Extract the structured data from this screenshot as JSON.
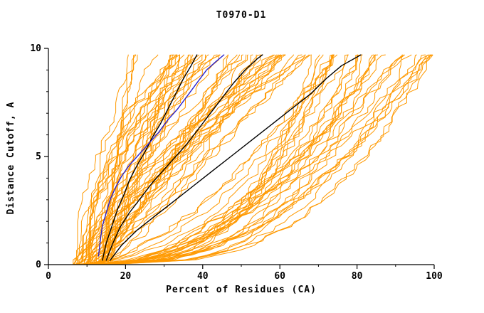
{
  "chart_data": {
    "type": "line",
    "title": "T0970-D1",
    "xlabel": "Percent of Residues (CA)",
    "ylabel": "Distance Cutoff, A",
    "xlim": [
      0,
      100
    ],
    "ylim": [
      0,
      10
    ],
    "x_ticks": [
      0,
      20,
      40,
      60,
      80,
      100
    ],
    "x_minor_ticks": [
      10,
      30,
      50,
      70,
      90
    ],
    "y_ticks": [
      0,
      5,
      10
    ],
    "y_minor_ticks": [
      1,
      2,
      3,
      4,
      6,
      7,
      8,
      9
    ],
    "grid": false,
    "legend": "none",
    "colors": {
      "ensemble": "#FF9900",
      "highlight": "#000000",
      "selected": "#2A22CC",
      "axis": "#000000",
      "background": "#FFFFFF"
    },
    "series": [
      {
        "name": "selected-model-blue",
        "color": "#2A22CC",
        "points": [
          [
            13,
            0.4
          ],
          [
            13.5,
            1.2
          ],
          [
            14,
            1.8
          ],
          [
            15,
            2.4
          ],
          [
            16,
            3.0
          ],
          [
            17.5,
            3.6
          ],
          [
            19,
            4.1
          ],
          [
            21,
            4.6
          ],
          [
            23.5,
            5.1
          ],
          [
            26,
            5.6
          ],
          [
            28.5,
            6.1
          ],
          [
            31,
            6.7
          ],
          [
            33.5,
            7.2
          ],
          [
            36,
            7.8
          ],
          [
            38.5,
            8.4
          ],
          [
            41,
            9.0
          ],
          [
            43.5,
            9.4
          ],
          [
            45.5,
            9.7
          ]
        ]
      },
      {
        "name": "highlight-model-black-1",
        "color": "#000000",
        "points": [
          [
            14,
            0.2
          ],
          [
            15,
            1.0
          ],
          [
            16.5,
            1.8
          ],
          [
            18,
            2.6
          ],
          [
            19.5,
            3.2
          ],
          [
            21,
            3.9
          ],
          [
            23,
            4.6
          ],
          [
            25,
            5.2
          ],
          [
            27,
            5.9
          ],
          [
            29,
            6.5
          ],
          [
            31,
            7.2
          ],
          [
            33,
            7.9
          ],
          [
            35,
            8.6
          ],
          [
            37,
            9.2
          ],
          [
            38.5,
            9.7
          ]
        ]
      },
      {
        "name": "highlight-model-black-2",
        "color": "#000000",
        "points": [
          [
            15,
            0.2
          ],
          [
            16.5,
            0.9
          ],
          [
            18.5,
            1.7
          ],
          [
            21,
            2.4
          ],
          [
            24,
            3.1
          ],
          [
            27,
            3.8
          ],
          [
            30,
            4.4
          ],
          [
            33,
            5.0
          ],
          [
            36,
            5.6
          ],
          [
            39,
            6.3
          ],
          [
            42,
            7.0
          ],
          [
            45,
            7.7
          ],
          [
            48,
            8.4
          ],
          [
            51,
            9.0
          ],
          [
            54,
            9.5
          ],
          [
            55.5,
            9.7
          ]
        ]
      },
      {
        "name": "highlight-model-black-3",
        "color": "#000000",
        "points": [
          [
            16,
            0.2
          ],
          [
            19,
            0.9
          ],
          [
            23,
            1.6
          ],
          [
            28,
            2.3
          ],
          [
            33,
            3.0
          ],
          [
            38,
            3.7
          ],
          [
            43,
            4.4
          ],
          [
            48,
            5.1
          ],
          [
            53,
            5.8
          ],
          [
            58,
            6.5
          ],
          [
            63,
            7.2
          ],
          [
            68,
            7.9
          ],
          [
            72,
            8.6
          ],
          [
            76,
            9.2
          ],
          [
            81,
            9.7
          ]
        ]
      }
    ],
    "ensemble": {
      "name": "model-ensemble-orange",
      "color": "#FF9900",
      "count": 90,
      "seed": 42,
      "x_start_range": [
        6,
        16
      ],
      "x_end_range": [
        20,
        100
      ],
      "y_max": 9.7,
      "y_step": 0.22,
      "jitter": 2.4
    }
  }
}
